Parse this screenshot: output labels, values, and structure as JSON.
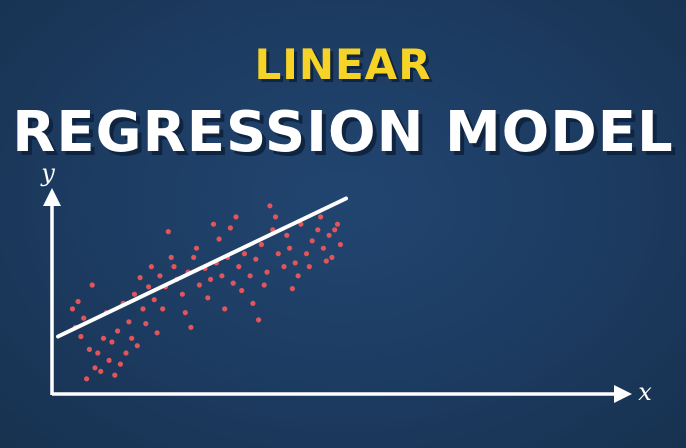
{
  "colors": {
    "background": "#1d3d63",
    "title_accent": "#f5d327",
    "title_main": "#ffffff",
    "points": "#e2555a",
    "line": "#ffffff",
    "axes": "#ffffff"
  },
  "heading": {
    "line1": "LINEAR",
    "line2": "REGRESSION MODEL"
  },
  "chart_data": {
    "type": "scatter",
    "xlabel": "x",
    "ylabel": "y",
    "grid": false,
    "legend": "none",
    "xlim": [
      0,
      100
    ],
    "ylim": [
      0,
      100
    ],
    "points": [
      [
        3,
        43
      ],
      [
        5,
        47
      ],
      [
        4,
        33
      ],
      [
        7,
        38
      ],
      [
        9,
        21
      ],
      [
        11,
        11
      ],
      [
        12,
        19
      ],
      [
        14,
        27
      ],
      [
        13,
        9
      ],
      [
        16,
        15
      ],
      [
        18,
        7
      ],
      [
        20,
        13
      ],
      [
        17,
        25
      ],
      [
        22,
        19
      ],
      [
        19,
        31
      ],
      [
        24,
        27
      ],
      [
        26,
        23
      ],
      [
        23,
        36
      ],
      [
        21,
        46
      ],
      [
        25,
        51
      ],
      [
        28,
        43
      ],
      [
        30,
        55
      ],
      [
        27,
        60
      ],
      [
        29,
        35
      ],
      [
        32,
        48
      ],
      [
        34,
        61
      ],
      [
        31,
        66
      ],
      [
        36,
        55
      ],
      [
        38,
        71
      ],
      [
        35,
        43
      ],
      [
        40,
        59
      ],
      [
        42,
        51
      ],
      [
        39,
        66
      ],
      [
        44,
        63
      ],
      [
        46,
        71
      ],
      [
        43,
        41
      ],
      [
        48,
        56
      ],
      [
        50,
        65
      ],
      [
        47,
        76
      ],
      [
        52,
        59
      ],
      [
        54,
        68
      ],
      [
        51,
        49
      ],
      [
        56,
        61
      ],
      [
        58,
        71
      ],
      [
        55,
        81
      ],
      [
        60,
        57
      ],
      [
        62,
        66
      ],
      [
        59,
        87
      ],
      [
        64,
        73
      ],
      [
        66,
        61
      ],
      [
        63,
        53
      ],
      [
        68,
        70
      ],
      [
        70,
        78
      ],
      [
        67,
        46
      ],
      [
        72,
        63
      ],
      [
        74,
        86
      ],
      [
        71,
        56
      ],
      [
        76,
        73
      ],
      [
        78,
        66
      ],
      [
        75,
        93
      ],
      [
        80,
        76
      ],
      [
        82,
        68
      ],
      [
        79,
        83
      ],
      [
        84,
        89
      ],
      [
        86,
        73
      ],
      [
        83,
        61
      ],
      [
        88,
        80
      ],
      [
        90,
        86
      ],
      [
        87,
        66
      ],
      [
        92,
        76
      ],
      [
        94,
        83
      ],
      [
        91,
        93
      ],
      [
        96,
        86
      ],
      [
        98,
        78
      ],
      [
        95,
        71
      ],
      [
        97,
        89
      ],
      [
        6,
        28
      ],
      [
        15,
        41
      ],
      [
        33,
        30
      ],
      [
        45,
        33
      ],
      [
        57,
        43
      ],
      [
        69,
        37
      ],
      [
        81,
        54
      ],
      [
        93,
        69
      ],
      [
        61,
        93
      ],
      [
        73,
        99
      ],
      [
        53,
        89
      ],
      [
        37,
        85
      ],
      [
        10,
        56
      ],
      [
        8,
        5
      ]
    ],
    "regression_line": {
      "x": [
        0,
        100
      ],
      "y": [
        28,
        103
      ]
    }
  }
}
